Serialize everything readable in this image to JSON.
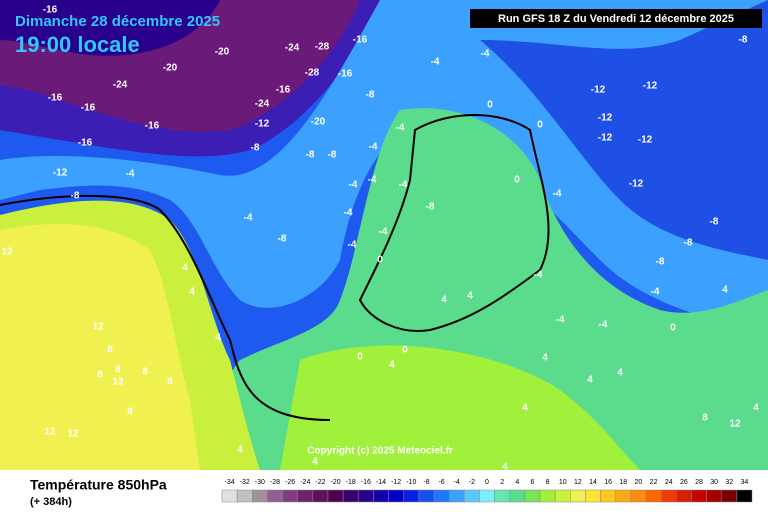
{
  "header": {
    "date": "Dimanche 28 décembre 2025",
    "time": "19:00 locale",
    "run": "Run GFS 18 Z du Vendredi 12 décembre 2025",
    "copyright": "Copyright (c) 2025 Meteociel.fr"
  },
  "footer": {
    "title": "Température 850hPa",
    "lead": "(+ 384h)"
  },
  "legend": {
    "ticks": [
      "-34",
      "-32",
      "-30",
      "-28",
      "-26",
      "-24",
      "-22",
      "-20",
      "-18",
      "-16",
      "-14",
      "-12",
      "-10",
      "-8",
      "-6",
      "-4",
      "-2",
      "0",
      "2",
      "4",
      "6",
      "8",
      "10",
      "12",
      "14",
      "16",
      "18",
      "20",
      "22",
      "24",
      "26",
      "28",
      "30",
      "32",
      "34"
    ],
    "colors": [
      "#e0e0e0",
      "#c0c0c0",
      "#a090a0",
      "#906090",
      "#803c80",
      "#702070",
      "#601060",
      "#500050",
      "#3c006e",
      "#28008c",
      "#1400aa",
      "#0000c8",
      "#0a1ee6",
      "#1450f0",
      "#1e78ff",
      "#3ca0ff",
      "#5ac8ff",
      "#78f0ff",
      "#64e6b4",
      "#5adc8c",
      "#78e650",
      "#a0f03c",
      "#c8f03c",
      "#f0f050",
      "#ffe632",
      "#ffc81e",
      "#ffaa14",
      "#ff8c0a",
      "#ff6400",
      "#f03c00",
      "#dc1e00",
      "#c80000",
      "#a00000",
      "#780000",
      "#000000"
    ]
  },
  "map_labels": [
    "-16",
    "-24",
    "-20",
    "-16",
    "-16",
    "-16",
    "-12",
    "-8",
    "-4",
    "-16",
    "-28",
    "-24",
    "-20",
    "-16",
    "-16",
    "-28",
    "-16",
    "-12",
    "-20",
    "-24",
    "-8",
    "-8",
    "-8",
    "-8",
    "-4",
    "-4",
    "-4",
    "-4",
    "-4",
    "-4",
    "-4",
    "-8",
    "-4",
    "-8",
    "-4",
    "-4",
    "0",
    "0",
    "0",
    "0",
    "-4",
    "-12",
    "-12",
    "-12",
    "-12",
    "-12",
    "-12",
    "-8",
    "-8",
    "-8",
    "-8",
    "-4",
    "-4",
    "-4",
    "0",
    "4",
    "-4",
    "4",
    "4",
    "0",
    "0",
    "4",
    "4",
    "4",
    "4",
    "4",
    "4",
    "4",
    "4",
    "12",
    "12",
    "8",
    "8",
    "8",
    "8",
    "12",
    "12",
    "8",
    "4",
    "4",
    "8",
    "12",
    "4",
    "-4",
    "12",
    "8",
    "4"
  ]
}
